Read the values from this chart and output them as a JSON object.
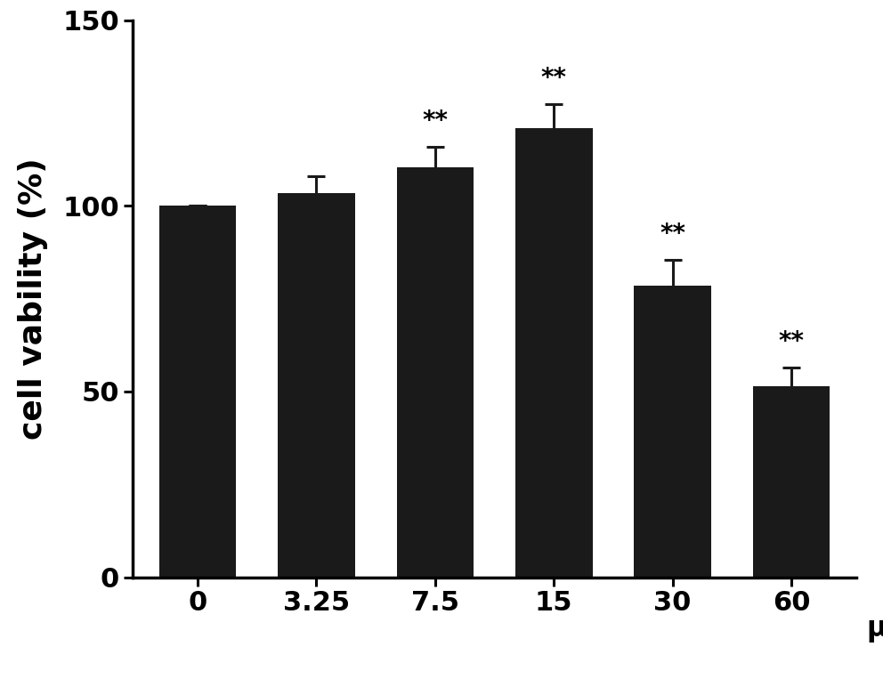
{
  "categories": [
    "0",
    "3.25",
    "7.5",
    "15",
    "30",
    "60"
  ],
  "values": [
    100,
    103.5,
    110.5,
    121.0,
    78.5,
    51.5
  ],
  "errors": [
    0,
    4.5,
    5.5,
    6.5,
    7.0,
    5.0
  ],
  "significance": [
    false,
    false,
    true,
    true,
    true,
    true
  ],
  "bar_color": "#1a1a1a",
  "error_color": "#1a1a1a",
  "ylabel": "cell vability (%)",
  "xlabel_unit": "μM",
  "ylim": [
    0,
    150
  ],
  "yticks": [
    0,
    50,
    100,
    150
  ],
  "background_color": "#ffffff",
  "bar_width": 0.65,
  "figsize": [
    9.92,
    7.63
  ],
  "dpi": 100,
  "ylabel_fontsize": 26,
  "tick_fontsize": 22,
  "sig_fontsize": 20,
  "xlabel_unit_fontsize": 22,
  "spine_linewidth": 2.5
}
